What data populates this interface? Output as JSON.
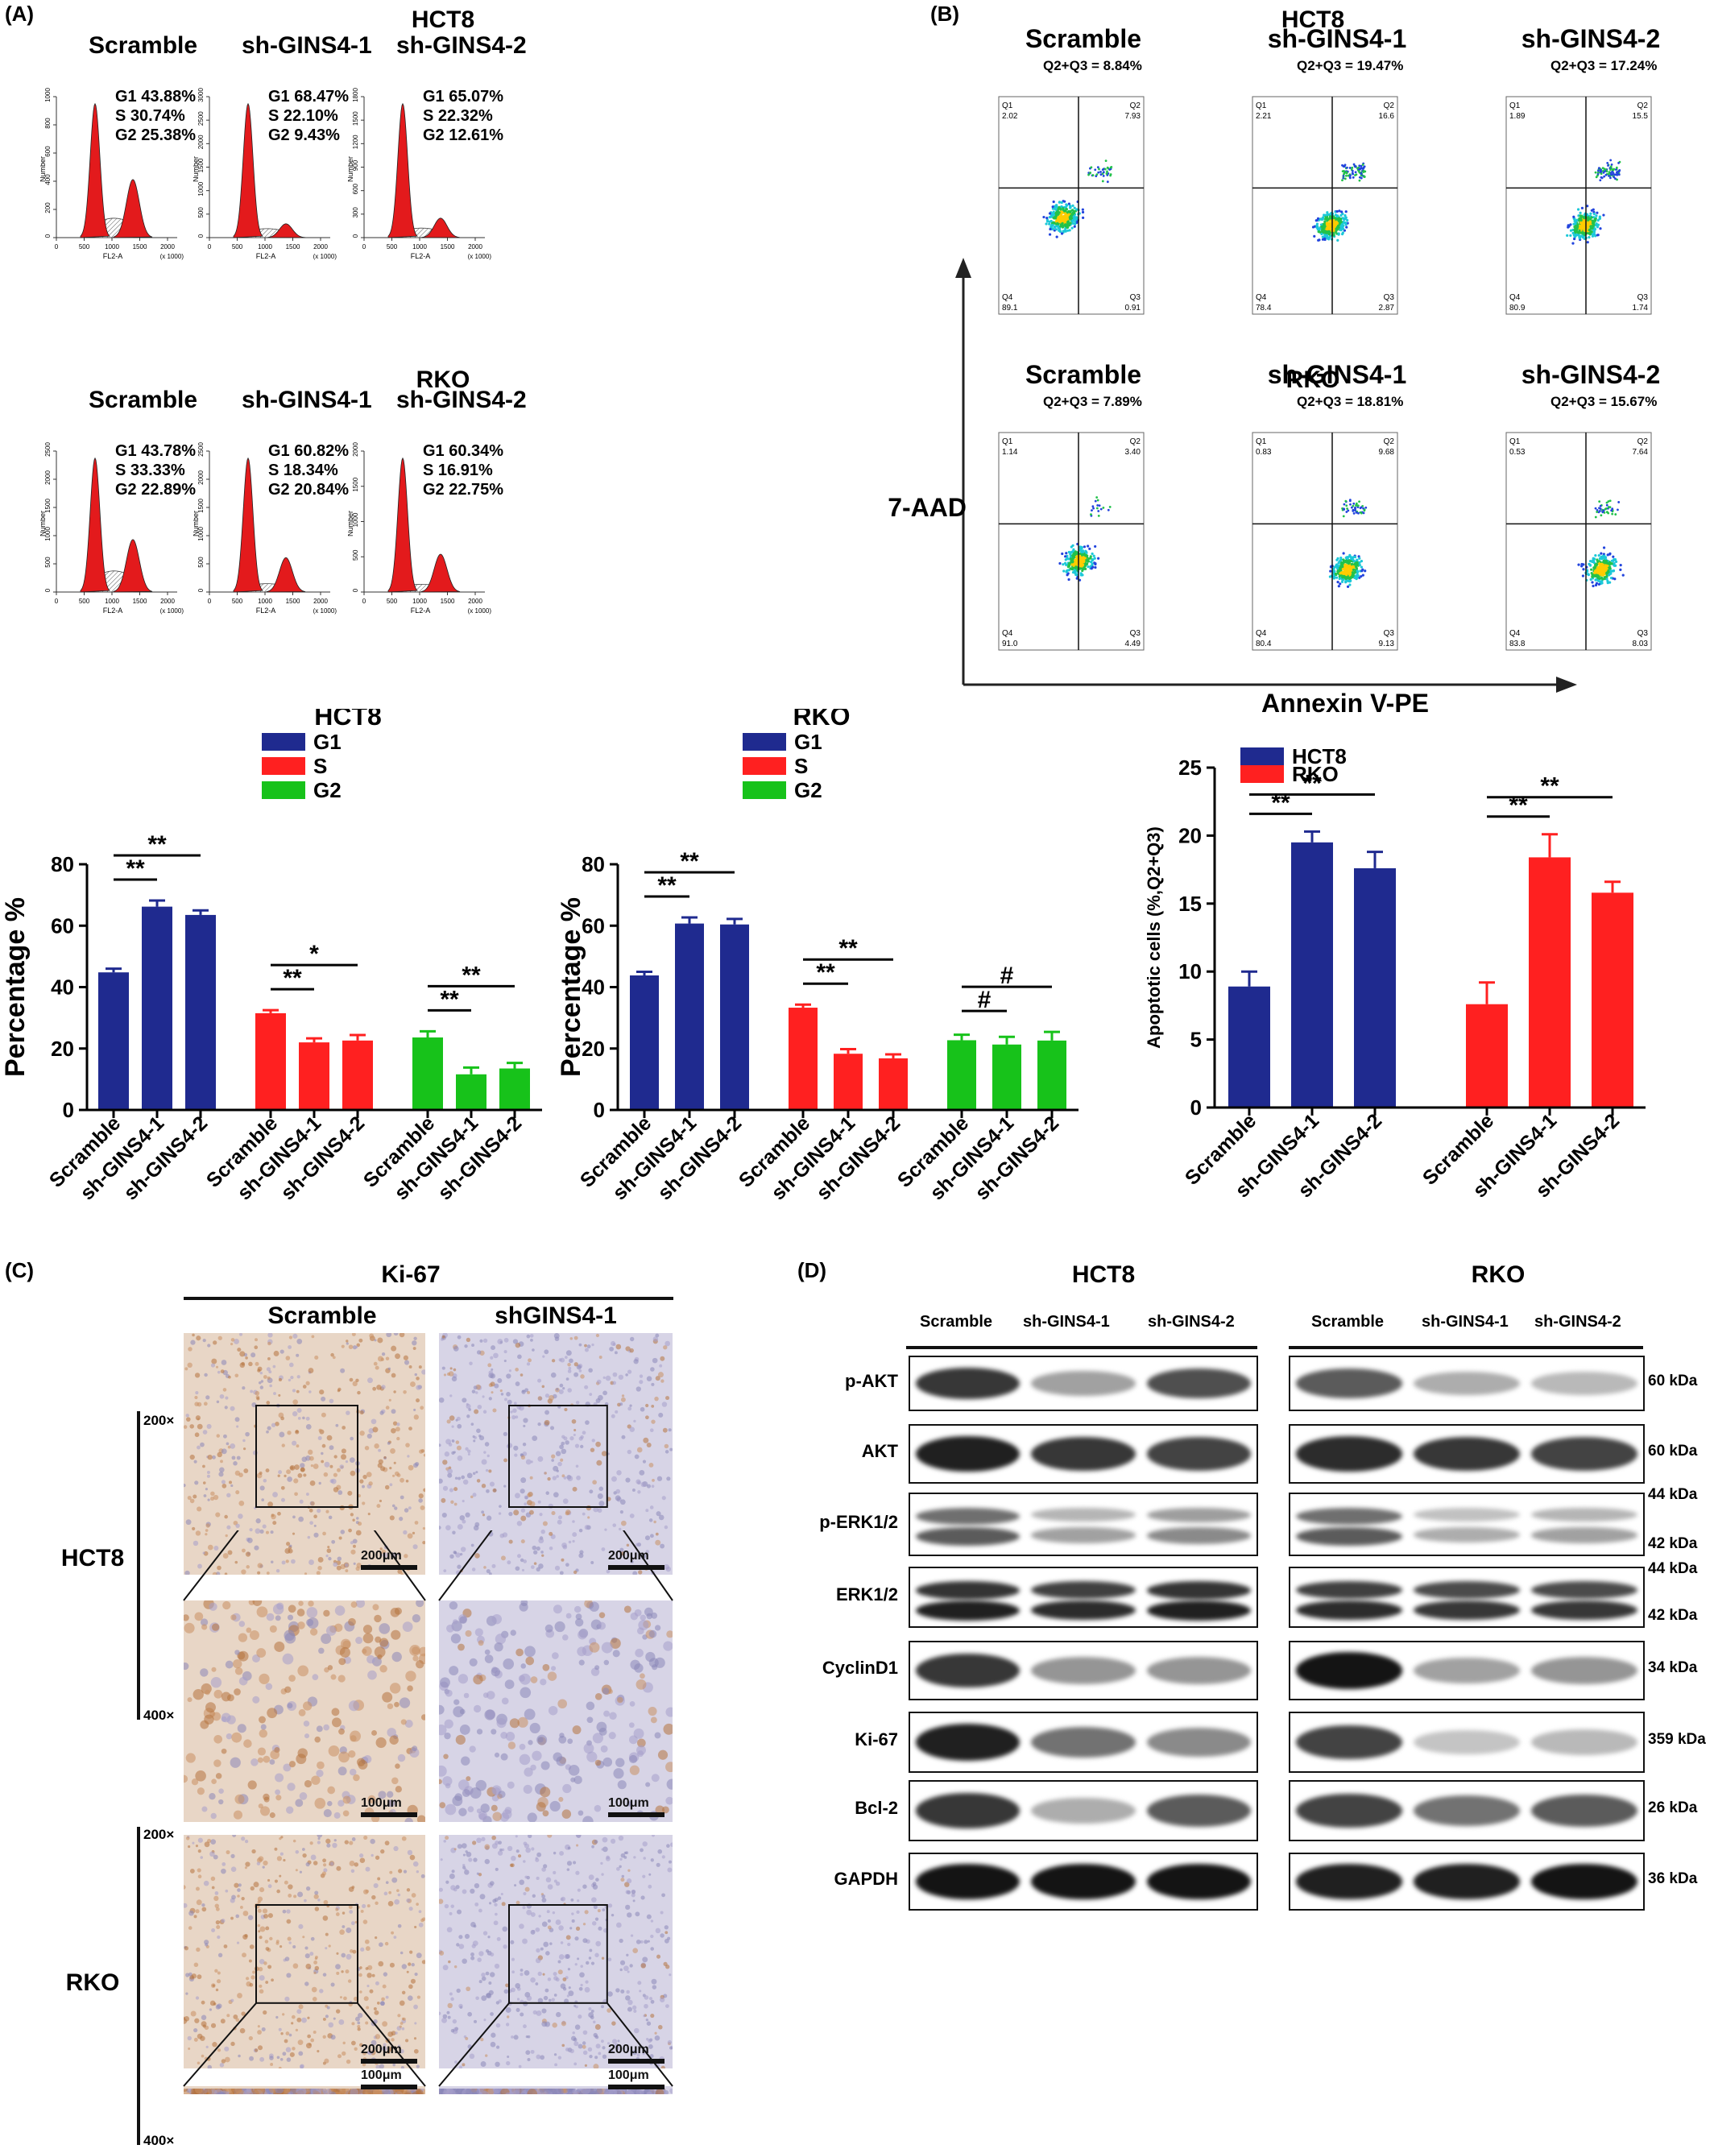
{
  "panels": {
    "A": "(A)",
    "B": "(B)",
    "C": "(C)",
    "D": "(D)"
  },
  "colors": {
    "blue": "#1f2a8f",
    "red": "#ff2020",
    "green": "#17c21a",
    "hist_red": "#e31a1c"
  },
  "panelA": {
    "rows": [
      {
        "cell": "HCT8",
        "hists": [
          {
            "label": "Scramble",
            "stats": "G1 43.88%\nS 30.74%\nG2 25.38%",
            "ymax": "1000",
            "yticks": [
              "0",
              "200",
              "400",
              "600",
              "800",
              "1000"
            ]
          },
          {
            "label": "sh-GINS4-1",
            "stats": "G1 68.47%\nS 22.10%\nG2 9.43%",
            "ymax": "3000",
            "yticks": [
              "0",
              "500",
              "1000",
              "1500",
              "2000",
              "2500",
              "3000"
            ]
          },
          {
            "label": "sh-GINS4-2",
            "stats": "G1 65.07%\nS 22.32%\nG2 12.61%",
            "ymax": "1800",
            "yticks": [
              "0",
              "300",
              "600",
              "900",
              "1200",
              "1500",
              "1800"
            ]
          }
        ]
      },
      {
        "cell": "RKO",
        "hists": [
          {
            "label": "Scramble",
            "stats": "G1 43.78%\nS 33.33%\nG2 22.89%",
            "ymax": "2500",
            "yticks": [
              "0",
              "500",
              "1000",
              "1500",
              "2000",
              "2500"
            ]
          },
          {
            "label": "sh-GINS4-1",
            "stats": "G1 60.82%\nS 18.34%\nG2 20.84%",
            "ymax": "2500",
            "yticks": [
              "0",
              "500",
              "1000",
              "1500",
              "2000",
              "2500"
            ]
          },
          {
            "label": "sh-GINS4-2",
            "stats": "G1 60.34%\nS 16.91%\nG2 22.75%",
            "ymax": "2000",
            "yticks": [
              "0",
              "500",
              "1000",
              "1500",
              "2000"
            ]
          }
        ]
      }
    ],
    "xlabel": "FL2-A",
    "xunit": "(x 1000)",
    "ylabel": "Number",
    "xticks": [
      "0",
      "500",
      "1000",
      "1500",
      "2000"
    ]
  },
  "panelB": {
    "rows": [
      {
        "cell": "HCT8",
        "plots": [
          {
            "label": "Scramble",
            "sum": "Q2+Q3 = 8.84%",
            "q1": "2.02",
            "q2": "7.93",
            "q3": "0.91",
            "q4": "89.1"
          },
          {
            "label": "sh-GINS4-1",
            "sum": "Q2+Q3 = 19.47%",
            "q1": "2.21",
            "q2": "16.6",
            "q3": "2.87",
            "q4": "78.4"
          },
          {
            "label": "sh-GINS4-2",
            "sum": "Q2+Q3 = 17.24%",
            "q1": "1.89",
            "q2": "15.5",
            "q3": "1.74",
            "q4": "80.9"
          }
        ]
      },
      {
        "cell": "RKO",
        "plots": [
          {
            "label": "Scramble",
            "sum": "Q2+Q3 = 7.89%",
            "q1": "1.14",
            "q2": "3.40",
            "q3": "4.49",
            "q4": "91.0"
          },
          {
            "label": "sh-GINS4-1",
            "sum": "Q2+Q3 = 18.81%",
            "q1": "0.83",
            "q2": "9.68",
            "q3": "9.13",
            "q4": "80.4"
          },
          {
            "label": "sh-GINS4-2",
            "sum": "Q2+Q3 = 15.67%",
            "q1": "0.53",
            "q2": "7.64",
            "q3": "8.03",
            "q4": "83.8"
          }
        ]
      }
    ],
    "yaxis": "7-AAD",
    "xaxis": "Annexin V-PE",
    "quadrants": [
      "Q1",
      "Q2",
      "Q3",
      "Q4"
    ]
  },
  "chart_data": [
    {
      "type": "bar",
      "title": "HCT8",
      "ylabel": "Percentage %",
      "ylim": [
        0,
        80
      ],
      "yticks": [
        0,
        20,
        40,
        60,
        80
      ],
      "legend": "top-right",
      "categories": [
        "Scramble",
        "sh-GINS4-1",
        "sh-GINS4-2"
      ],
      "series": [
        {
          "name": "G1",
          "values": [
            44.8,
            66.2,
            63.5
          ],
          "errors": [
            1.2,
            2.0,
            1.5
          ]
        },
        {
          "name": "S",
          "values": [
            31.5,
            22.0,
            22.6
          ],
          "errors": [
            1.0,
            1.3,
            1.8
          ]
        },
        {
          "name": "G2",
          "values": [
            23.6,
            11.6,
            13.5
          ],
          "errors": [
            2.0,
            2.2,
            1.8
          ]
        }
      ],
      "annotations": [
        {
          "series": "G1",
          "from": 0,
          "to": 1,
          "text": "**"
        },
        {
          "series": "G1",
          "from": 0,
          "to": 2,
          "text": "**"
        },
        {
          "series": "S",
          "from": 0,
          "to": 1,
          "text": "**"
        },
        {
          "series": "S",
          "from": 0,
          "to": 2,
          "text": "*"
        },
        {
          "series": "G2",
          "from": 0,
          "to": 1,
          "text": "**"
        },
        {
          "series": "G2",
          "from": 0,
          "to": 2,
          "text": "**"
        }
      ]
    },
    {
      "type": "bar",
      "title": "RKO",
      "ylabel": "Percentage %",
      "ylim": [
        0,
        80
      ],
      "yticks": [
        0,
        20,
        40,
        60,
        80
      ],
      "legend": "top-right",
      "categories": [
        "Scramble",
        "sh-GINS4-1",
        "sh-GINS4-2"
      ],
      "series": [
        {
          "name": "G1",
          "values": [
            43.8,
            60.7,
            60.4
          ],
          "errors": [
            1.2,
            2.0,
            1.8
          ]
        },
        {
          "name": "S",
          "values": [
            33.3,
            18.3,
            16.8
          ],
          "errors": [
            1.0,
            1.5,
            1.3
          ]
        },
        {
          "name": "G2",
          "values": [
            22.7,
            21.3,
            22.6
          ],
          "errors": [
            1.8,
            2.5,
            2.8
          ]
        }
      ],
      "annotations": [
        {
          "series": "G1",
          "from": 0,
          "to": 1,
          "text": "**"
        },
        {
          "series": "G1",
          "from": 0,
          "to": 2,
          "text": "**"
        },
        {
          "series": "S",
          "from": 0,
          "to": 1,
          "text": "**"
        },
        {
          "series": "S",
          "from": 0,
          "to": 2,
          "text": "**"
        },
        {
          "series": "G2",
          "from": 0,
          "to": 1,
          "text": "#"
        },
        {
          "series": "G2",
          "from": 0,
          "to": 2,
          "text": "#"
        }
      ]
    },
    {
      "type": "bar",
      "title": "",
      "ylabel": "Apoptotic cells (%,Q2+Q3)",
      "ylim": [
        0,
        25
      ],
      "yticks": [
        0,
        5,
        10,
        15,
        20,
        25
      ],
      "legend": "top-left",
      "categories": [
        "Scramble",
        "sh-GINS4-1",
        "sh-GINS4-2"
      ],
      "series": [
        {
          "name": "HCT8",
          "values": [
            8.9,
            19.5,
            17.6
          ],
          "errors": [
            1.1,
            0.8,
            1.2
          ]
        },
        {
          "name": "RKO",
          "values": [
            7.6,
            18.4,
            15.8
          ],
          "errors": [
            1.6,
            1.7,
            0.8
          ]
        }
      ],
      "annotations": [
        {
          "series": "HCT8",
          "from": 0,
          "to": 1,
          "text": "**"
        },
        {
          "series": "HCT8",
          "from": 0,
          "to": 2,
          "text": "**"
        },
        {
          "series": "RKO",
          "from": 0,
          "to": 1,
          "text": "**"
        },
        {
          "series": "RKO",
          "from": 0,
          "to": 2,
          "text": "**"
        }
      ]
    }
  ],
  "panelC": {
    "marker": "Ki-67",
    "columns": [
      "Scramble",
      "shGINS4-1"
    ],
    "cells": [
      "HCT8",
      "RKO"
    ],
    "mags": [
      "200×",
      "400×"
    ],
    "scale200": "200μm",
    "scale400": "100μm"
  },
  "panelD": {
    "groups": [
      {
        "cell": "HCT8",
        "lanes": [
          "Scramble",
          "sh-GINS4-1",
          "sh-GINS4-2"
        ]
      },
      {
        "cell": "RKO",
        "lanes": [
          "Scramble",
          "sh-GINS4-1",
          "sh-GINS4-2"
        ]
      }
    ],
    "blots": [
      {
        "name": "p-AKT",
        "kda": [
          "60 kDa"
        ]
      },
      {
        "name": "AKT",
        "kda": [
          "60 kDa"
        ]
      },
      {
        "name": "p-ERK1/2",
        "kda": [
          "44 kDa",
          "42 kDa"
        ]
      },
      {
        "name": "ERK1/2",
        "kda": [
          "44 kDa",
          "42 kDa"
        ]
      },
      {
        "name": "CyclinD1",
        "kda": [
          "34 kDa"
        ]
      },
      {
        "name": "Ki-67",
        "kda": [
          "359 kDa"
        ]
      },
      {
        "name": "Bcl-2",
        "kda": [
          "26 kDa"
        ]
      },
      {
        "name": "GAPDH",
        "kda": [
          "36 kDa"
        ]
      }
    ]
  }
}
